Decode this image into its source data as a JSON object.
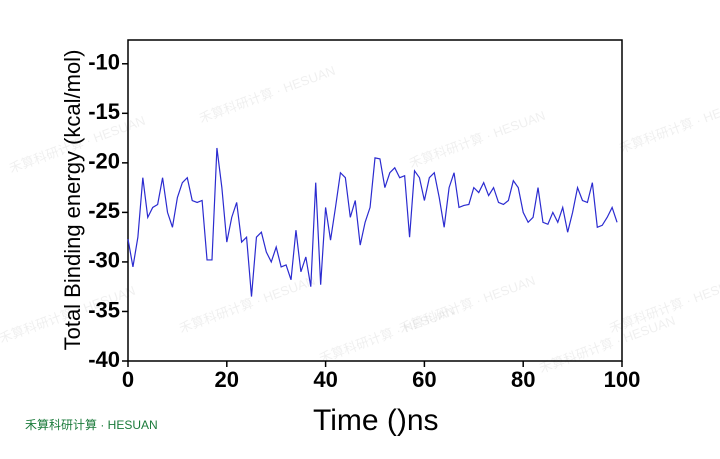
{
  "chart_data": {
    "type": "line",
    "xlabel": "Time ()ns",
    "ylabel": "Total Binding energy (kcal/mol)",
    "watermark": "禾算科研计算 · HESUAN",
    "x": [
      0,
      1,
      2,
      3,
      4,
      5,
      6,
      7,
      8,
      9,
      10,
      11,
      12,
      13,
      14,
      15,
      16,
      17,
      18,
      19,
      20,
      21,
      22,
      23,
      24,
      25,
      26,
      27,
      28,
      29,
      30,
      31,
      32,
      33,
      34,
      35,
      36,
      37,
      38,
      39,
      40,
      41,
      42,
      43,
      44,
      45,
      46,
      47,
      48,
      49,
      50,
      51,
      52,
      53,
      54,
      55,
      56,
      57,
      58,
      59,
      60,
      61,
      62,
      63,
      64,
      65,
      66,
      67,
      68,
      69,
      70,
      71,
      72,
      73,
      74,
      75,
      76,
      77,
      78,
      79,
      80,
      81,
      82,
      83,
      84,
      85,
      86,
      87,
      88,
      89,
      90,
      91,
      92,
      93,
      94,
      95,
      96,
      97,
      98,
      99
    ],
    "series": [
      {
        "name": "Total Binding energy",
        "color": "#2b2bd0",
        "values": [
          -27.7,
          -30.5,
          -27.5,
          -21.5,
          -25.5,
          -24.5,
          -24.2,
          -21.5,
          -25,
          -26.5,
          -23.5,
          -22,
          -21.5,
          -23.8,
          -24,
          -23.8,
          -29.8,
          -29.8,
          -18.5,
          -22.5,
          -28,
          -25.5,
          -24,
          -28,
          -27.5,
          -33.5,
          -27.5,
          -27,
          -29,
          -30,
          -28.5,
          -30.5,
          -30.3,
          -31.8,
          -26.8,
          -31,
          -29.5,
          -32.5,
          -22,
          -32.3,
          -24.5,
          -27.8,
          -24.5,
          -21,
          -21.5,
          -25.5,
          -23.8,
          -28.3,
          -26,
          -24.5,
          -19.5,
          -19.6,
          -22.5,
          -21,
          -20.5,
          -21.5,
          -21.3,
          -27.5,
          -20.8,
          -21.5,
          -23.8,
          -21.5,
          -21,
          -23.5,
          -26.5,
          -22.5,
          -21,
          -24.5,
          -24.3,
          -24.2,
          -22.5,
          -23,
          -22,
          -23.3,
          -22.5,
          -24,
          -24.2,
          -23.8,
          -21.8,
          -22.5,
          -25,
          -26,
          -25.5,
          -22.5,
          -26,
          -26.2,
          -25,
          -26,
          -24.5,
          -27,
          -25,
          -22.5,
          -23.8,
          -24,
          -22,
          -26.5,
          -26.3,
          -25.5,
          -24.5,
          -26
        ]
      }
    ],
    "xlim": [
      0,
      100
    ],
    "xticks": [
      0,
      20,
      40,
      60,
      80,
      100
    ],
    "ylim": [
      -40,
      -7.6
    ],
    "yticks": [
      -40,
      -35,
      -30,
      -25,
      -20,
      -15,
      -10
    ]
  }
}
